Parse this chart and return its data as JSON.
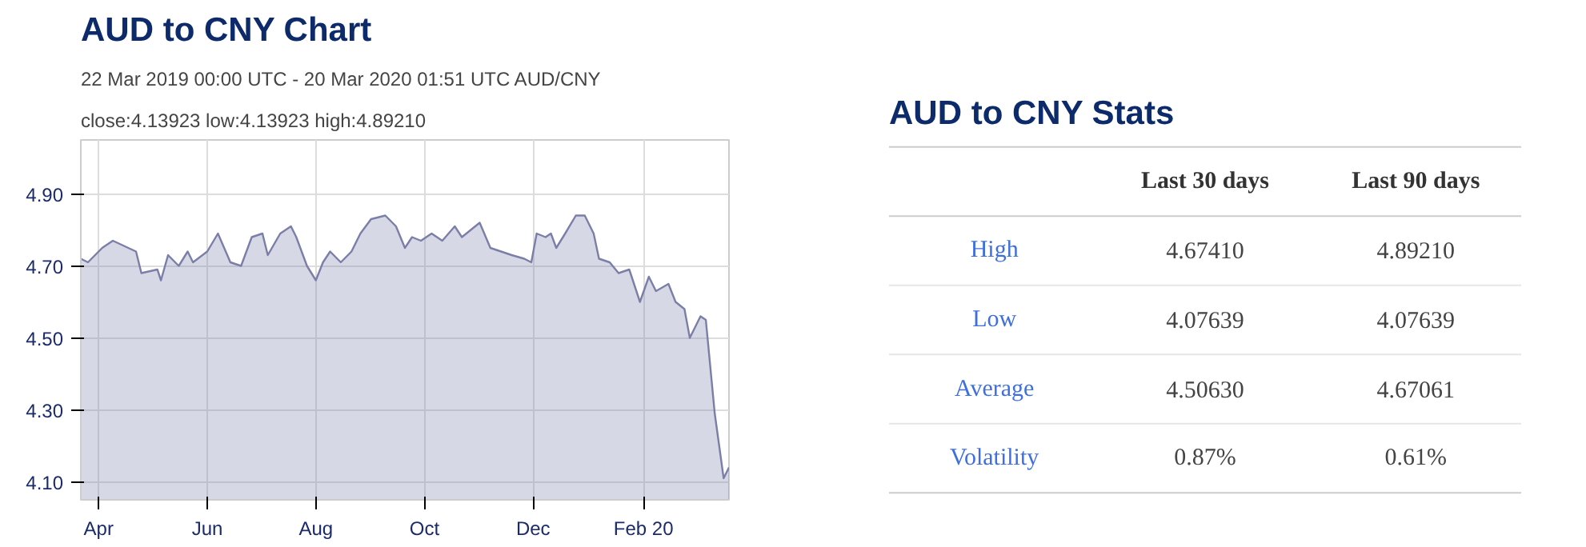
{
  "chart_data": [
    {
      "type": "area",
      "title": "AUD to CNY Chart",
      "subtitle": "22 Mar 2019 00:00 UTC - 20 Mar 2020 01:51 UTC   AUD/CNY",
      "annotations": [
        "close:4.13923 low:4.13923 high:4.89210"
      ],
      "x": [
        "2019-03-22",
        "2019-03-26",
        "2019-04-03",
        "2019-04-09",
        "2019-04-22",
        "2019-04-25",
        "2019-05-04",
        "2019-05-06",
        "2019-05-10",
        "2019-05-16",
        "2019-05-21",
        "2019-05-24",
        "2019-06-01",
        "2019-06-07",
        "2019-06-14",
        "2019-06-20",
        "2019-06-26",
        "2019-07-02",
        "2019-07-05",
        "2019-07-12",
        "2019-07-18",
        "2019-07-21",
        "2019-07-27",
        "2019-08-01",
        "2019-08-05",
        "2019-08-09",
        "2019-08-15",
        "2019-08-21",
        "2019-08-26",
        "2019-09-01",
        "2019-09-09",
        "2019-09-15",
        "2019-09-20",
        "2019-09-24",
        "2019-09-29",
        "2019-10-05",
        "2019-10-11",
        "2019-10-18",
        "2019-10-22",
        "2019-11-01",
        "2019-11-07",
        "2019-11-13",
        "2019-11-19",
        "2019-11-26",
        "2019-11-30",
        "2019-12-03",
        "2019-12-08",
        "2019-12-11",
        "2019-12-14",
        "2019-12-19",
        "2019-12-25",
        "2019-12-30",
        "2020-01-04",
        "2020-01-07",
        "2020-01-13",
        "2020-01-18",
        "2020-01-24",
        "2020-01-30",
        "2020-02-04",
        "2020-02-08",
        "2020-02-15",
        "2020-02-19",
        "2020-02-24",
        "2020-02-27",
        "2020-03-04",
        "2020-03-07",
        "2020-03-12",
        "2020-03-17",
        "2020-03-20"
      ],
      "series": [
        {
          "color": "#7b7fa8",
          "values": [
            4.72,
            4.71,
            4.75,
            4.77,
            4.74,
            4.68,
            4.69,
            4.66,
            4.73,
            4.7,
            4.74,
            4.71,
            4.74,
            4.79,
            4.71,
            4.7,
            4.78,
            4.79,
            4.73,
            4.79,
            4.81,
            4.78,
            4.7,
            4.66,
            4.71,
            4.74,
            4.71,
            4.74,
            4.79,
            4.83,
            4.84,
            4.81,
            4.75,
            4.78,
            4.77,
            4.79,
            4.77,
            4.81,
            4.78,
            4.82,
            4.75,
            4.74,
            4.73,
            4.72,
            4.71,
            4.79,
            4.78,
            4.79,
            4.75,
            4.79,
            4.84,
            4.84,
            4.79,
            4.72,
            4.71,
            4.68,
            4.69,
            4.6,
            4.67,
            4.63,
            4.65,
            4.6,
            4.58,
            4.5,
            4.56,
            4.55,
            4.29,
            4.11,
            4.14
          ]
        }
      ],
      "xlim": [
        "2019-03-22",
        "2020-03-20"
      ],
      "xticks": [
        {
          "value": "2019-04-01",
          "label": "Apr"
        },
        {
          "value": "2019-06-01",
          "label": "Jun"
        },
        {
          "value": "2019-08-01",
          "label": "Aug"
        },
        {
          "value": "2019-10-01",
          "label": "Oct"
        },
        {
          "value": "2019-12-01",
          "label": "Dec"
        },
        {
          "value": "2020-02-01",
          "label": "Feb 20"
        }
      ],
      "ylim": [
        4.05,
        5.05
      ],
      "yticks": [
        {
          "value": 4.1,
          "label": "4.10"
        },
        {
          "value": 4.3,
          "label": "4.30"
        },
        {
          "value": 4.5,
          "label": "4.50"
        },
        {
          "value": 4.7,
          "label": "4.70"
        },
        {
          "value": 4.9,
          "label": "4.90"
        }
      ],
      "grid": true
    },
    {
      "type": "other",
      "title": "AUD to CNY Stats",
      "categories": [
        "Last 30 days",
        "Last 90 days"
      ],
      "y_categories": [
        "High",
        "Low",
        "Average",
        "Volatility"
      ],
      "cell_labels": [
        [
          "4.67410",
          "4.89210"
        ],
        [
          "4.07639",
          "4.07639"
        ],
        [
          "4.50630",
          "4.67061"
        ],
        [
          "0.87%",
          "0.61%"
        ]
      ]
    }
  ]
}
